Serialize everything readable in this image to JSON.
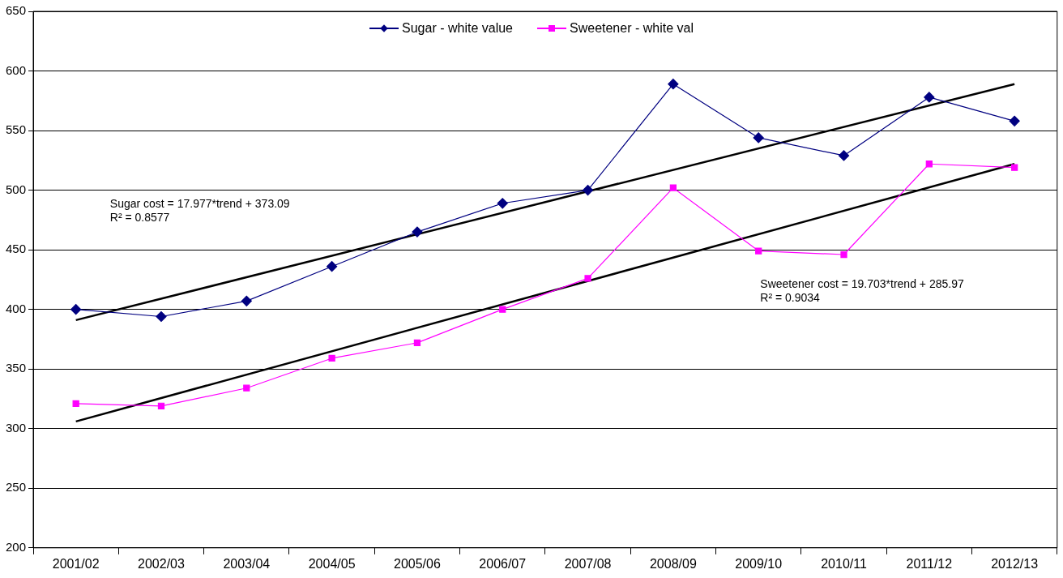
{
  "chart_data": {
    "type": "line",
    "categories": [
      "2001/02",
      "2002/03",
      "2003/04",
      "2004/05",
      "2005/06",
      "2006/07",
      "2007/08",
      "2008/09",
      "2009/10",
      "2010/11",
      "2011/12",
      "2012/13"
    ],
    "series": [
      {
        "name": "Sugar - white value",
        "color": "#000080",
        "marker": "diamond",
        "values": [
          400,
          394,
          407,
          436,
          465,
          489,
          500,
          589,
          544,
          529,
          578,
          558
        ]
      },
      {
        "name": "Sweetener - white val",
        "color": "#ff00ff",
        "marker": "square",
        "values": [
          321,
          319,
          334,
          359,
          372,
          400,
          426,
          502,
          449,
          446,
          522,
          519
        ]
      },
      {
        "type": "line",
        "color": "#000000",
        "marker": "none",
        "x": [
          "2001/02",
          "2012/13"
        ],
        "values": [
          391,
          589
        ]
      },
      {
        "type": "line",
        "color": "#000000",
        "marker": "none",
        "x": [
          "2001/02",
          "2012/13"
        ],
        "values": [
          306,
          522
        ]
      }
    ],
    "ylim": [
      200,
      650
    ],
    "yticks": [
      200,
      250,
      300,
      350,
      400,
      450,
      500,
      550,
      600,
      650
    ],
    "grid": "y",
    "legend": "top",
    "annotations": [
      "Sugar cost = 17.977*trend + 373.09",
      "R² = 0.8577",
      "Sweetener cost = 19.703*trend + 285.97",
      "R² = 0.9034"
    ]
  }
}
